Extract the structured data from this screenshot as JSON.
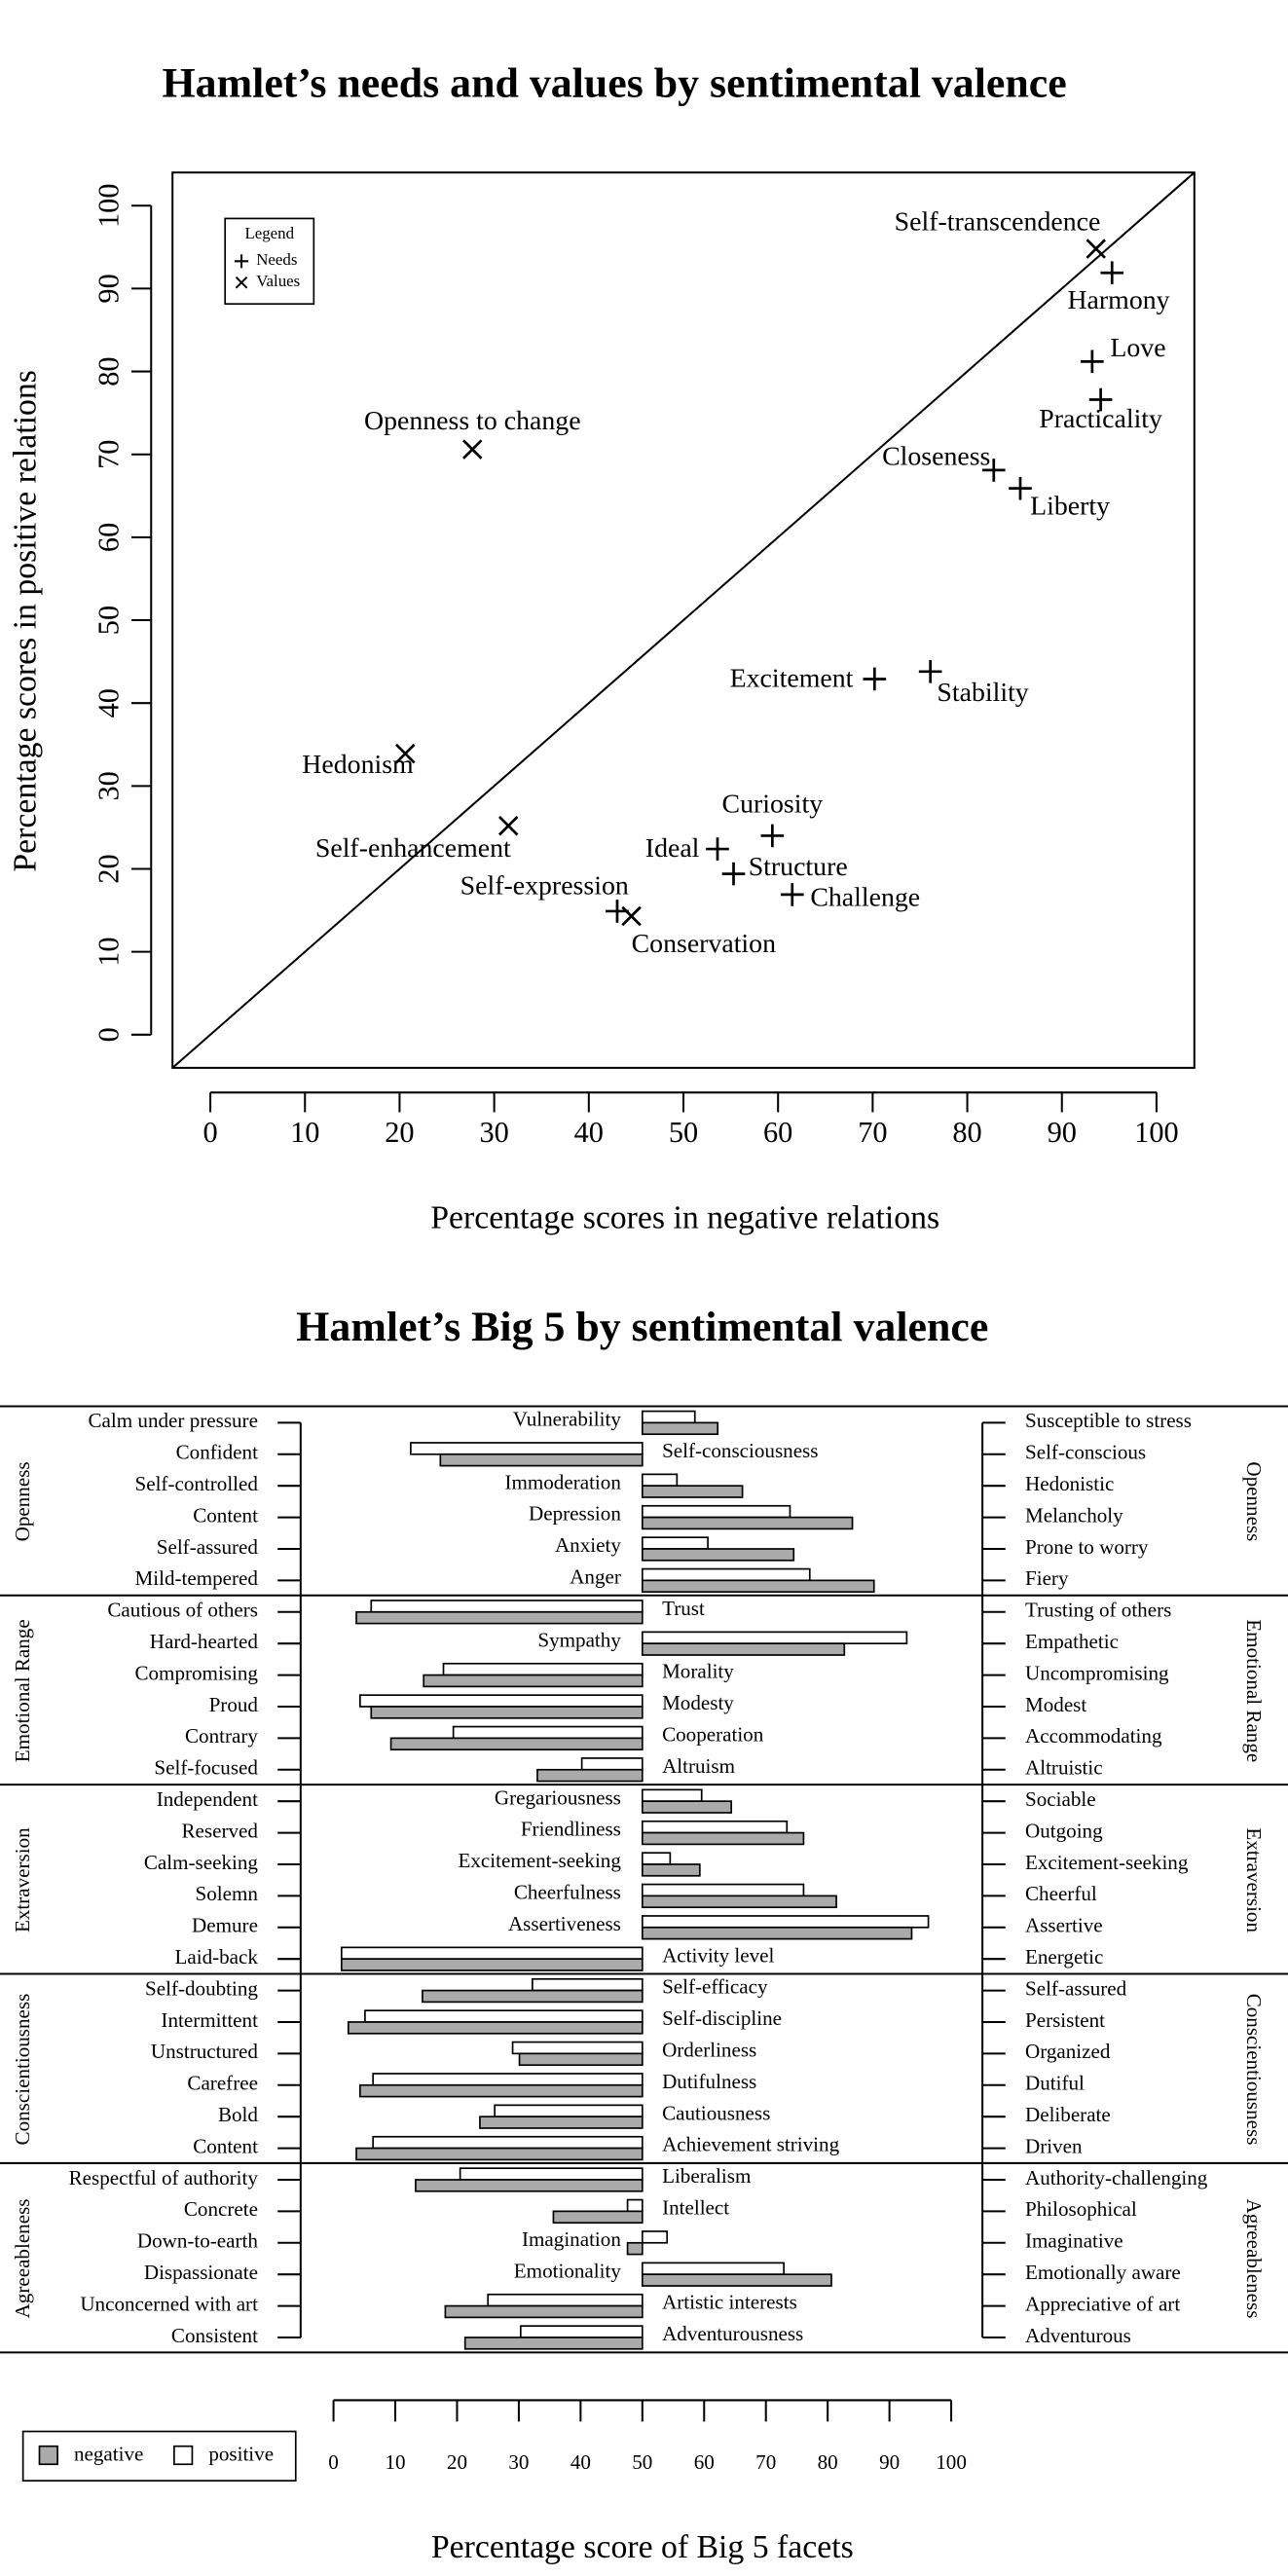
{
  "chart_data": [
    {
      "type": "scatter",
      "title": "Hamlet’s needs and values by sentimental valence",
      "x_label": "Percentage scores in negative relations",
      "y_label": "Percentage scores in positive relations",
      "legend_title": "Legend",
      "legend_position": "top-left",
      "reference_line": "diagonal",
      "xlim": [
        -4,
        104
      ],
      "ylim": [
        -4,
        104
      ],
      "xticks": [
        0,
        10,
        20,
        30,
        40,
        50,
        60,
        70,
        80,
        90,
        100
      ],
      "yticks": [
        0,
        10,
        20,
        30,
        40,
        50,
        60,
        70,
        80,
        90,
        100
      ],
      "series": [
        {
          "name": "Needs",
          "marker": "plus",
          "color": "#000000",
          "labels": [
            "Harmony",
            "Love",
            "Practicality",
            "Closeness",
            "Liberty",
            "Excitement",
            "Stability",
            "Curiosity",
            "Ideal",
            "Structure",
            "Challenge",
            "Self-expression"
          ],
          "x": [
            95.3,
            93.2,
            94.1,
            82.8,
            85.6,
            70.2,
            76.1,
            59.4,
            53.6,
            55.3,
            61.5,
            43.0
          ],
          "y": [
            91.9,
            81.2,
            76.6,
            68.1,
            65.9,
            42.9,
            43.8,
            24.0,
            22.4,
            19.4,
            16.9,
            14.9
          ]
        },
        {
          "name": "Values",
          "marker": "cross",
          "color": "#000000",
          "labels": [
            "Self-transcendence",
            "Openness to change",
            "Hedonism",
            "Self-enhancement",
            "Conservation"
          ],
          "x": [
            93.6,
            27.7,
            20.6,
            31.5,
            44.5
          ],
          "y": [
            94.8,
            70.6,
            33.9,
            25.2,
            14.3
          ]
        }
      ]
    },
    {
      "type": "butterfly_bar",
      "title": "Hamlet’s Big 5 by sentimental valence",
      "x_label": "Percentage score of Big 5 facets",
      "legend_position": "bottom-left",
      "xlim": [
        0,
        100
      ],
      "xticks": [
        0,
        10,
        20,
        30,
        40,
        50,
        60,
        70,
        80,
        90,
        100
      ],
      "groups": [
        "Openness",
        "Emotional Range",
        "Extraversion",
        "Conscientiousness",
        "Agreeableness"
      ],
      "categories": [
        "Vulnerability",
        "Self-consciousness",
        "Immoderation",
        "Depression",
        "Anxiety",
        "Anger",
        "Trust",
        "Sympathy",
        "Morality",
        "Modesty",
        "Cooperation",
        "Altruism",
        "Gregariousness",
        "Friendliness",
        "Excitement-seeking",
        "Cheerfulness",
        "Assertiveness",
        "Activity level",
        "Self-efficacy",
        "Self-discipline",
        "Orderliness",
        "Dutifulness",
        "Cautiousness",
        "Achievement striving",
        "Liberalism",
        "Intellect",
        "Imagination",
        "Emotionality",
        "Artistic interests",
        "Adventurousness"
      ],
      "left_labels": [
        "Calm under pressure",
        "Confident",
        "Self-controlled",
        "Content",
        "Self-assured",
        "Mild-tempered",
        "Cautious of others",
        "Hard-hearted",
        "Compromising",
        "Proud",
        "Contrary",
        "Self-focused",
        "Independent",
        "Reserved",
        "Calm-seeking",
        "Solemn",
        "Demure",
        "Laid-back",
        "Self-doubting",
        "Intermittent",
        "Unstructured",
        "Carefree",
        "Bold",
        "Content",
        "Respectful of authority",
        "Concrete",
        "Down-to-earth",
        "Dispassionate",
        "Unconcerned with art",
        "Consistent"
      ],
      "right_labels": [
        "Susceptible to stress",
        "Self-conscious",
        "Hedonistic",
        "Melancholy",
        "Prone to worry",
        "Fiery",
        "Trusting of others",
        "Empathetic",
        "Uncompromising",
        "Modest",
        "Accommodating",
        "Altruistic",
        "Sociable",
        "Outgoing",
        "Excitement-seeking",
        "Cheerful",
        "Assertive",
        "Energetic",
        "Self-assured",
        "Persistent",
        "Organized",
        "Dutiful",
        "Deliberate",
        "Driven",
        "Authority-challenging",
        "Philosophical",
        "Imaginative",
        "Emotionally aware",
        "Appreciative of art",
        "Adventurous"
      ],
      "series": [
        {
          "name": "negative",
          "color": "#aaaaaa",
          "values": [
            62.2,
            17.3,
            66.2,
            84.0,
            74.5,
            87.5,
            3.7,
            82.7,
            14.6,
            6.1,
            9.3,
            33.0,
            64.4,
            76.1,
            59.3,
            81.4,
            93.6,
            1.3,
            14.4,
            2.4,
            30.1,
            4.3,
            23.7,
            3.7,
            13.3,
            35.6,
            47.6,
            80.6,
            18.1,
            21.3
          ]
        },
        {
          "name": "positive",
          "color": "#ffffff",
          "values": [
            58.5,
            12.5,
            55.6,
            73.9,
            60.6,
            77.1,
            6.1,
            92.8,
            17.8,
            4.3,
            19.4,
            40.2,
            59.6,
            73.4,
            54.5,
            76.1,
            96.3,
            1.3,
            32.2,
            5.1,
            29.0,
            6.4,
            26.1,
            6.4,
            20.5,
            47.6,
            54.0,
            72.9,
            25.0,
            30.3
          ]
        }
      ]
    }
  ]
}
